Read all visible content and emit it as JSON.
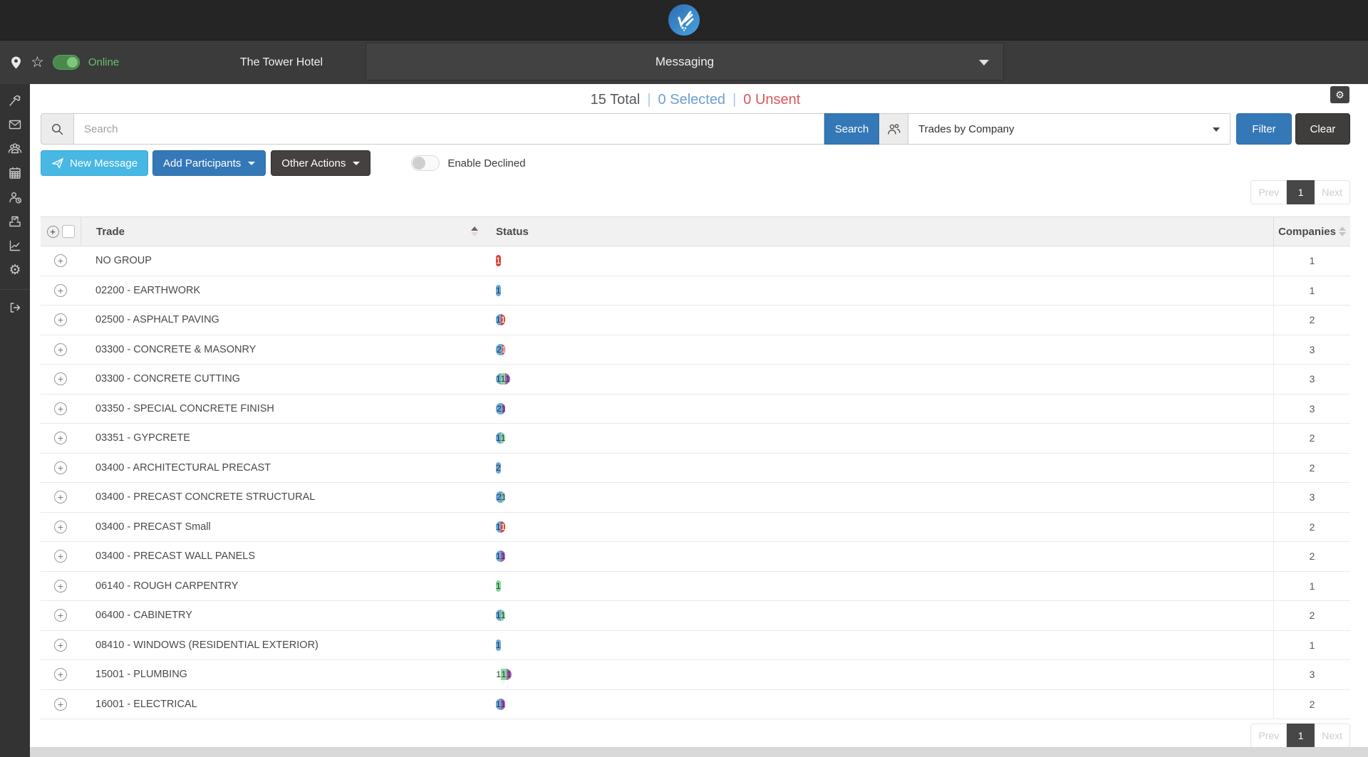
{
  "topbar": {
    "project_name": "The Tower Hotel",
    "online_label": "Online",
    "nav_selected": "Messaging"
  },
  "stats": {
    "total": "15 Total",
    "selected": "0 Selected",
    "unsent": "0 Unsent",
    "separator": "|"
  },
  "search": {
    "placeholder": "Search",
    "search_button": "Search",
    "view_select_value": "Trades by Company",
    "filter_button": "Filter",
    "clear_button": "Clear"
  },
  "actions": {
    "new_message": "New Message",
    "add_participants": "Add Participants",
    "other_actions": "Other Actions",
    "enable_declined": "Enable Declined"
  },
  "pagination": {
    "prev": "Prev",
    "page": "1",
    "next": "Next"
  },
  "colors": {
    "status_blue": "#69aadd",
    "status_red": "#d9453e",
    "status_green": "#86d99e",
    "status_purple": "#a95cba",
    "status_white": "#ffffff",
    "button_blue": "#3478b7",
    "button_light_blue": "#47b7e3",
    "button_dark": "#403d3d",
    "online_green": "#6cbf6b",
    "unsent_red": "#d9575c",
    "selected_blue": "#6f9ed1"
  },
  "table": {
    "headers": {
      "trade": "Trade",
      "status": "Status",
      "companies": "Companies"
    },
    "rows": [
      {
        "trade": "NO GROUP",
        "companies": "1",
        "segments": [
          {
            "color": "red",
            "count": "1",
            "frac": 1
          }
        ]
      },
      {
        "trade": "02200 - EARTHWORK",
        "companies": "1",
        "segments": [
          {
            "color": "blue",
            "count": "1",
            "frac": 1
          }
        ]
      },
      {
        "trade": "02500 - ASPHALT PAVING",
        "companies": "2",
        "segments": [
          {
            "color": "blue",
            "count": "1",
            "frac": 0.5
          },
          {
            "color": "red",
            "count": "1",
            "frac": 0.5
          }
        ]
      },
      {
        "trade": "03300 - CONCRETE & MASONRY",
        "companies": "3",
        "segments": [
          {
            "color": "blue",
            "count": "2",
            "frac": 0.667
          },
          {
            "color": "red",
            "count": "1",
            "frac": 0.333
          }
        ]
      },
      {
        "trade": "03300 - CONCRETE CUTTING",
        "companies": "3",
        "segments": [
          {
            "color": "blue",
            "count": "1",
            "frac": 0.333
          },
          {
            "color": "green",
            "count": "1",
            "frac": 0.334
          },
          {
            "color": "purple",
            "count": "1",
            "frac": 0.333
          }
        ]
      },
      {
        "trade": "03350 - SPECIAL CONCRETE FINISH",
        "companies": "3",
        "segments": [
          {
            "color": "blue",
            "count": "2",
            "frac": 0.667
          },
          {
            "color": "purple",
            "count": "1",
            "frac": 0.333
          }
        ]
      },
      {
        "trade": "03351 - GYPCRETE",
        "companies": "2",
        "segments": [
          {
            "color": "blue",
            "count": "1",
            "frac": 0.5
          },
          {
            "color": "green",
            "count": "1",
            "frac": 0.5
          }
        ]
      },
      {
        "trade": "03400 - ARCHITECTURAL PRECAST",
        "companies": "2",
        "segments": [
          {
            "color": "blue",
            "count": "2",
            "frac": 1
          }
        ]
      },
      {
        "trade": "03400 - PRECAST CONCRETE STRUCTURAL",
        "companies": "3",
        "segments": [
          {
            "color": "blue",
            "count": "2",
            "frac": 0.667
          },
          {
            "color": "green",
            "count": "1",
            "frac": 0.333
          }
        ]
      },
      {
        "trade": "03400 - PRECAST Small",
        "companies": "2",
        "segments": [
          {
            "color": "blue",
            "count": "1",
            "frac": 0.5
          },
          {
            "color": "red",
            "count": "1",
            "frac": 0.5
          }
        ]
      },
      {
        "trade": "03400 - PRECAST WALL PANELS",
        "companies": "2",
        "segments": [
          {
            "color": "blue",
            "count": "1",
            "frac": 0.5
          },
          {
            "color": "purple",
            "count": "1",
            "frac": 0.5
          }
        ]
      },
      {
        "trade": "06140 - ROUGH CARPENTRY",
        "companies": "1",
        "segments": [
          {
            "color": "green",
            "count": "1",
            "frac": 1
          }
        ]
      },
      {
        "trade": "06400 - CABINETRY",
        "companies": "2",
        "segments": [
          {
            "color": "blue",
            "count": "1",
            "frac": 0.5
          },
          {
            "color": "green",
            "count": "1",
            "frac": 0.5
          }
        ]
      },
      {
        "trade": "08410 - WINDOWS (RESIDENTIAL EXTERIOR)",
        "companies": "1",
        "segments": [
          {
            "color": "blue",
            "count": "1",
            "frac": 1
          }
        ]
      },
      {
        "trade": "15001 - PLUMBING",
        "companies": "3",
        "segments": [
          {
            "color": "white",
            "count": "1",
            "frac": 0.333
          },
          {
            "color": "green",
            "count": "1",
            "frac": 0.334
          },
          {
            "color": "purple",
            "count": "1",
            "frac": 0.333
          }
        ]
      },
      {
        "trade": "16001 - ELECTRICAL",
        "companies": "2",
        "segments": [
          {
            "color": "blue",
            "count": "1",
            "frac": 0.5
          },
          {
            "color": "purple",
            "count": "1",
            "frac": 0.5
          }
        ]
      }
    ]
  }
}
